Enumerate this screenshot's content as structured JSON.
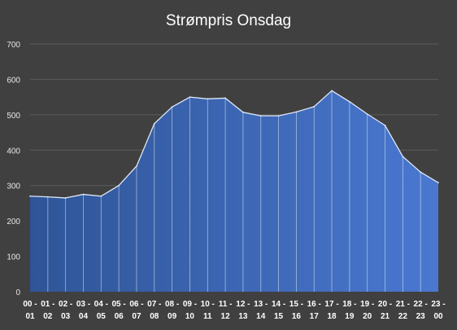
{
  "chart_data": {
    "type": "area",
    "title": "Strømpris Onsdag",
    "xlabel": "",
    "ylabel": "",
    "ylim": [
      0,
      700
    ],
    "yticks": [
      0,
      100,
      200,
      300,
      400,
      500,
      600,
      700
    ],
    "grid": true,
    "legend": "none",
    "categories": [
      "00 - 01",
      "01 - 02",
      "02 - 03",
      "03 - 04",
      "04 - 05",
      "05 - 06",
      "06 - 07",
      "07 - 08",
      "08 - 09",
      "09 - 10",
      "10 - 11",
      "11 - 12",
      "12 - 13",
      "13 - 14",
      "14 - 15",
      "15 - 16",
      "16 - 17",
      "17 - 18",
      "18 - 19",
      "19 - 20",
      "20 - 21",
      "21 - 22",
      "22 - 23",
      "23 - 00"
    ],
    "values": [
      270,
      268,
      265,
      275,
      270,
      300,
      355,
      475,
      522,
      550,
      545,
      547,
      507,
      497,
      497,
      508,
      523,
      568,
      537,
      502,
      470,
      382,
      338,
      308
    ],
    "colors": {
      "fill_start": "#2f5597",
      "fill_end": "#4a78d0",
      "line": "#dfe7f7",
      "background": "#404040",
      "grid": "#5c5c5c"
    }
  }
}
